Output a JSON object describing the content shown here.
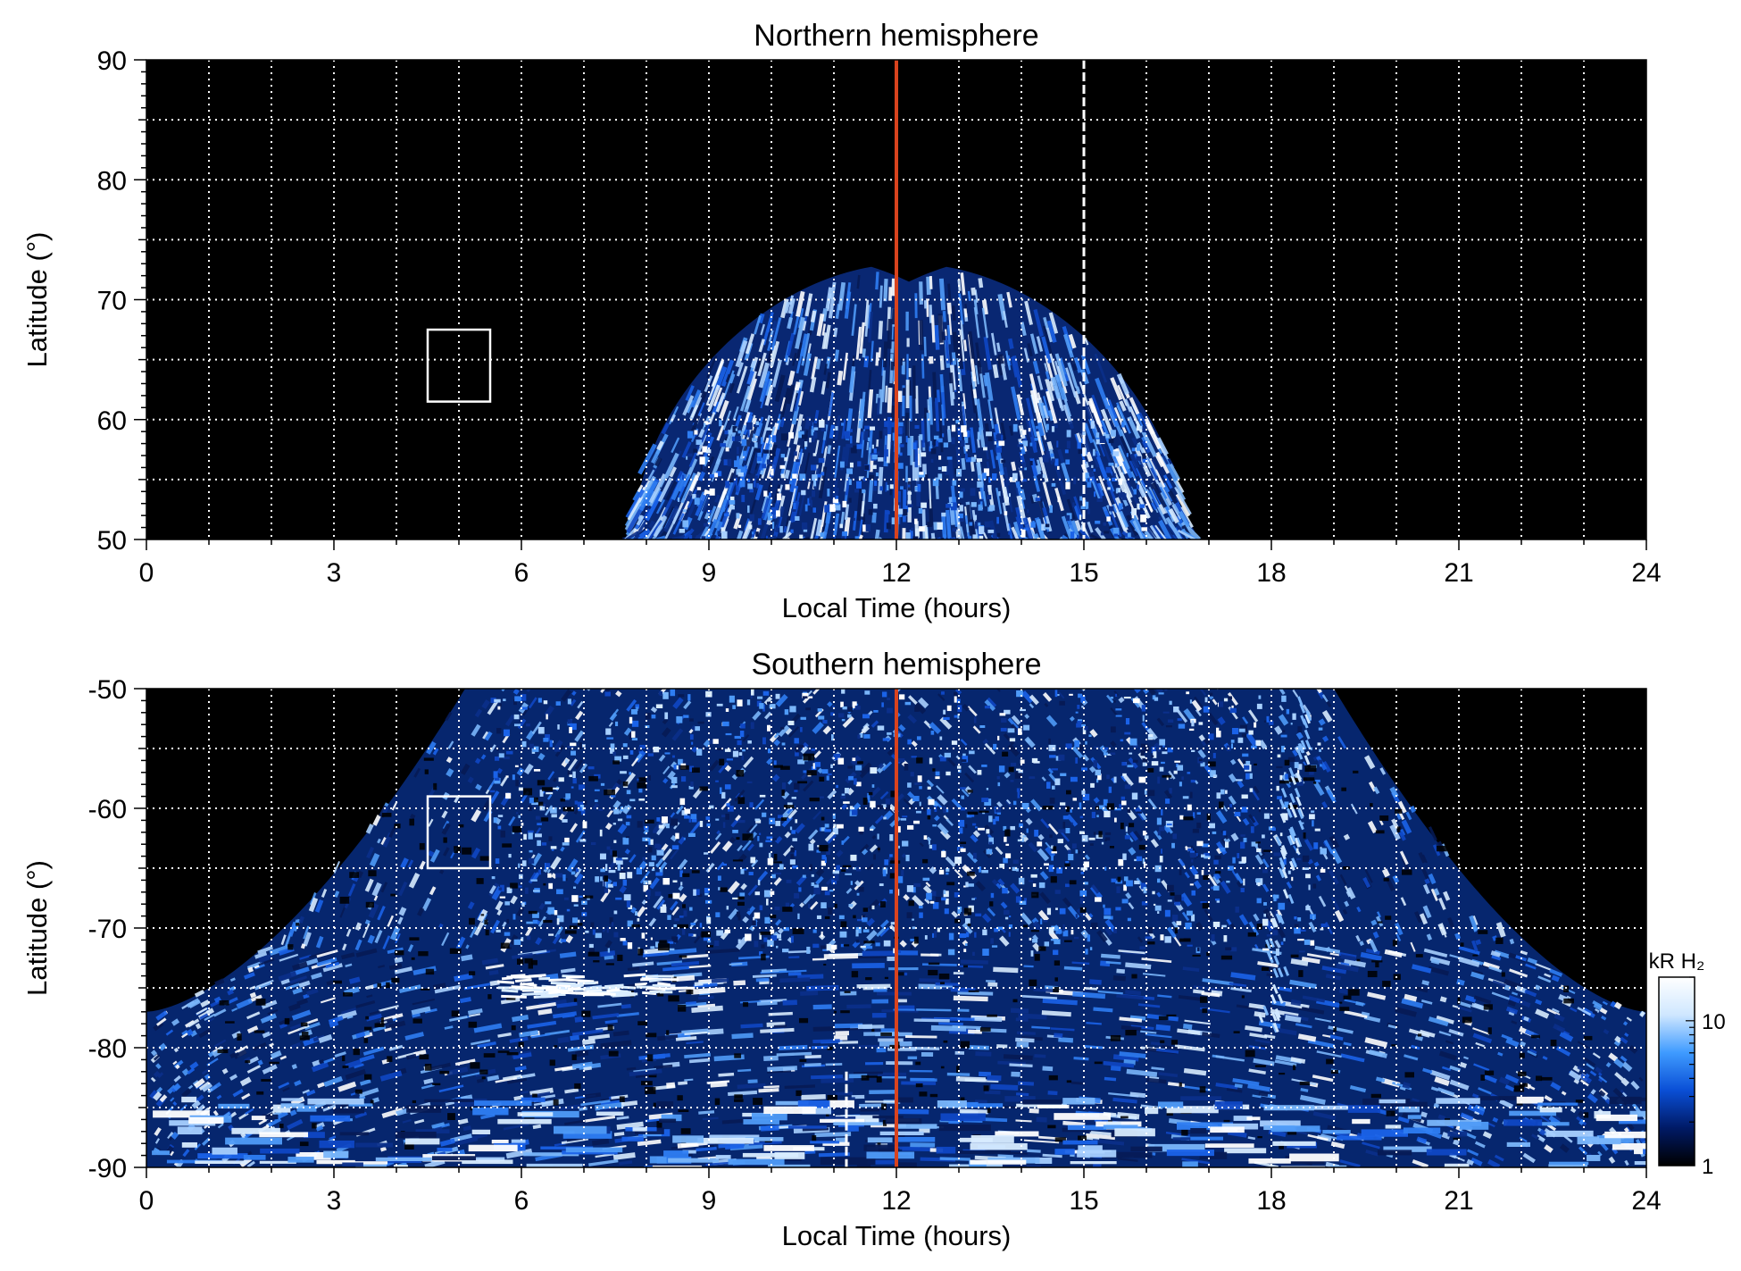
{
  "chart_data": [
    {
      "type": "heatmap",
      "title": "Northern hemisphere",
      "xlabel": "Local Time (hours)",
      "ylabel": "Latitude (°)",
      "xlim": [
        0,
        24
      ],
      "ylim": [
        50,
        90
      ],
      "x_ticks": [
        "0",
        "3",
        "6",
        "9",
        "12",
        "15",
        "18",
        "21",
        "24"
      ],
      "y_ticks": [
        "50",
        "60",
        "70",
        "80",
        "90"
      ],
      "grid": true,
      "background_color": "#000000",
      "noon_line": {
        "x": 12,
        "color": "#d9431e"
      },
      "dashed_line": {
        "x": 15,
        "color": "#ffffff"
      },
      "box": {
        "x0": 4.5,
        "x1": 5.5,
        "y0": 61.5,
        "y1": 67.5,
        "color": "#ffffff"
      },
      "coverage": "auroral emission from about 7.8 h to 16.6 h local time, up to about 73° latitude at 11–13 h"
    },
    {
      "type": "heatmap",
      "title": "Southern hemisphere",
      "xlabel": "Local Time (hours)",
      "ylabel": "Latitude (°)",
      "xlim": [
        0,
        24
      ],
      "ylim": [
        -90,
        -50
      ],
      "x_ticks": [
        "0",
        "3",
        "6",
        "9",
        "12",
        "15",
        "18",
        "21",
        "24"
      ],
      "y_ticks": [
        "-50",
        "-60",
        "-70",
        "-80",
        "-90"
      ],
      "grid": true,
      "background_color": "#000000",
      "noon_line": {
        "x": 12,
        "color": "#d9431e"
      },
      "dashed_line": {
        "x": 11.2,
        "color": "#ffffff"
      },
      "box": {
        "x0": 4.5,
        "x1": 5.5,
        "y0": -65,
        "y1": -59,
        "color": "#ffffff"
      },
      "coverage": "auroral emission across most local times; reaches -50° between about 5 h and 19 h, down to about -77° near 0 h and 24 h",
      "colorbar": {
        "label": "kR H₂",
        "scale": "log",
        "range": [
          1,
          20
        ],
        "ticks": [
          "1",
          "10"
        ],
        "colors": [
          "#000000",
          "#001a66",
          "#0a4fd6",
          "#3f9bff",
          "#cfe7ff",
          "#ffffff"
        ]
      }
    }
  ]
}
